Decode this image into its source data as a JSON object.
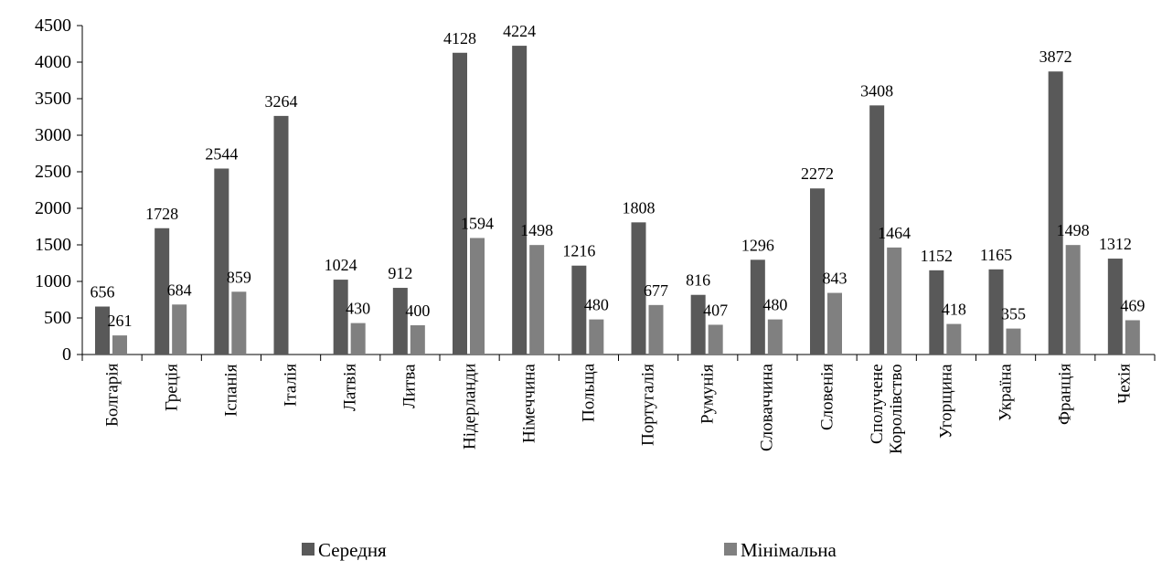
{
  "chart_data": {
    "type": "bar",
    "categories": [
      "Болгарія",
      "Греція",
      "Іспанія",
      "Італія",
      "Латвія",
      "Литва",
      "Нідерланди",
      "Німеччина",
      "Польща",
      "Португалія",
      "Румунія",
      "Словаччина",
      "Словенія",
      "Сполучене Королівство",
      "Угорщина",
      "Україна",
      "Франція",
      "Чехія"
    ],
    "series": [
      {
        "name": "Середня",
        "color": "#595959",
        "values": [
          656,
          1728,
          2544,
          3264,
          1024,
          912,
          4128,
          4224,
          1216,
          1808,
          816,
          1296,
          2272,
          3408,
          1152,
          1165,
          3872,
          1312
        ]
      },
      {
        "name": "Мінімальна",
        "color": "#808080",
        "values": [
          261,
          684,
          859,
          null,
          430,
          400,
          1594,
          1498,
          480,
          677,
          407,
          480,
          843,
          1464,
          418,
          355,
          1498,
          469
        ]
      }
    ],
    "ylim": [
      0,
      4500
    ],
    "yticks": [
      0,
      500,
      1000,
      1500,
      2000,
      2500,
      3000,
      3500,
      4000,
      4500
    ],
    "grid": false,
    "legend": "bottom"
  }
}
